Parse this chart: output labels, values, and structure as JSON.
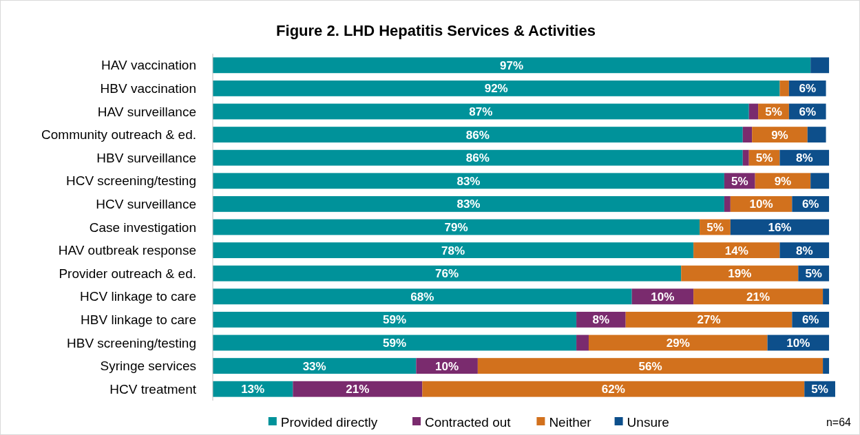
{
  "chart_data": {
    "type": "bar",
    "orientation": "horizontal",
    "stacked": true,
    "title": "Figure 2. LHD Hepatitis Services & Activities",
    "categories": [
      "HAV vaccination",
      "HBV vaccination",
      "HAV surveillance",
      "Community outreach & ed.",
      "HBV surveillance",
      "HCV screening/testing",
      "HCV surveillance",
      "Case investigation",
      "HAV outbreak response",
      "Provider outreach & ed.",
      "HCV linkage to care",
      "HBV linkage to care",
      "HBV screening/testing",
      "Syringe services",
      "HCV treatment"
    ],
    "xlim": [
      0,
      101
    ],
    "tick_labels": "y",
    "legend": "bottom",
    "grid": false,
    "series": [
      {
        "name": "Provided directly",
        "color": "#00929a",
        "values": [
          97,
          92,
          87,
          86,
          86,
          83,
          83,
          79,
          78,
          76,
          68,
          59,
          59,
          33,
          13
        ],
        "value_labels": [
          "97%",
          "92%",
          "87%",
          "86%",
          "86%",
          "83%",
          "83%",
          "79%",
          "78%",
          "76%",
          "68%",
          "59%",
          "59%",
          "33%",
          "13%"
        ]
      },
      {
        "name": "Contracted out",
        "color": "#7a2b6e",
        "values": [
          0,
          0,
          1.5,
          1.5,
          1,
          5,
          1,
          0,
          0,
          0,
          10,
          8,
          2,
          10,
          21
        ],
        "value_labels": [
          null,
          null,
          null,
          null,
          null,
          "5%",
          null,
          null,
          null,
          null,
          "10%",
          "8%",
          null,
          "10%",
          "21%"
        ]
      },
      {
        "name": "Neither",
        "color": "#d2711d",
        "values": [
          0,
          1.5,
          5,
          9,
          5,
          9,
          10,
          5,
          14,
          19,
          21,
          27,
          29,
          56,
          62
        ],
        "value_labels": [
          null,
          null,
          "5%",
          "9%",
          "5%",
          "9%",
          "10%",
          "5%",
          "14%",
          "19%",
          "21%",
          "27%",
          "29%",
          "56%",
          "62%"
        ]
      },
      {
        "name": "Unsure",
        "color": "#0d4f8b",
        "values": [
          3,
          6,
          6,
          3,
          8,
          3,
          6,
          16,
          8,
          5,
          1,
          6,
          10,
          1,
          5
        ],
        "value_labels": [
          null,
          "6%",
          "6%",
          null,
          "8%",
          null,
          "6%",
          "16%",
          "8%",
          "5%",
          null,
          "6%",
          "10%",
          null,
          "5%"
        ]
      }
    ],
    "annotations": [
      "n=64"
    ]
  }
}
